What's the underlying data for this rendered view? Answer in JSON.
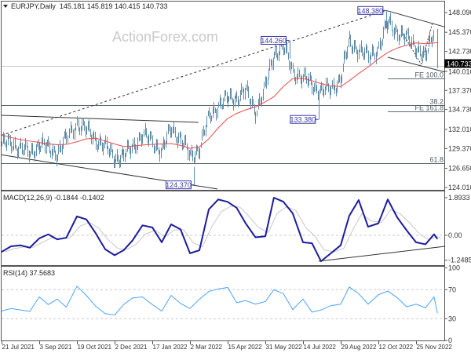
{
  "header": {
    "menu_icon": "triangle-down-icon",
    "symbol_label": "EURJPY,Daily",
    "ohlc": "145.181 145.819 140.415 140.733"
  },
  "watermark": "ActionForex.com",
  "macd_header": "MACD(12,26,9) -0.1844 -0.1402",
  "rsi_header": "RSI(14) 37.5683",
  "colors": {
    "bars": "#5f8ca8",
    "moving_average": "#f04a4a",
    "macd": "#1c1ca0",
    "signal": "#c8c8c8",
    "rsi": "#4aa3f5",
    "annotation": "#3a3aa8",
    "levels": "#5a6a70",
    "trendlines": "#333333"
  },
  "chart_data": [
    {
      "type": "ohlc",
      "symbol": "EURJPY",
      "timeframe": "Daily",
      "xticks": [
        {
          "label": "21 Jul 2021",
          "date": "2021-07-21"
        },
        {
          "label": "3 Sep 2021",
          "date": "2021-09-03"
        },
        {
          "label": "19 Oct 2021",
          "date": "2021-10-19"
        },
        {
          "label": "2 Dec 2021",
          "date": "2021-12-02"
        },
        {
          "label": "17 Jan 2022",
          "date": "2022-01-17"
        },
        {
          "label": "2 Mar 2022",
          "date": "2022-03-02"
        },
        {
          "label": "15 Apr 2022",
          "date": "2022-04-15"
        },
        {
          "label": "31 May 2022",
          "date": "2022-05-31"
        },
        {
          "label": "14 Jul 2022",
          "date": "2022-07-14"
        },
        {
          "label": "29 Aug 2022",
          "date": "2022-08-29"
        },
        {
          "label": "12 Oct 2022",
          "date": "2022-10-12"
        },
        {
          "label": "25 Nov 2022",
          "date": "2022-11-25"
        }
      ],
      "yticks": [
        "148.090",
        "145.370",
        "142.730",
        "140.010",
        "137.370",
        "134.730",
        "132.010",
        "129.370",
        "126.650",
        "124.010"
      ],
      "ylim": [
        124.01,
        148.09
      ],
      "x": [
        "2021-07-21",
        "2021-08-01",
        "2021-08-12",
        "2021-08-23",
        "2021-09-03",
        "2021-09-14",
        "2021-09-25",
        "2021-10-06",
        "2021-10-19",
        "2021-10-30",
        "2021-11-10",
        "2021-11-21",
        "2021-12-02",
        "2021-12-13",
        "2021-12-24",
        "2022-01-05",
        "2022-01-17",
        "2022-01-28",
        "2022-02-08",
        "2022-02-19",
        "2022-03-02",
        "2022-03-13",
        "2022-03-24",
        "2022-04-04",
        "2022-04-15",
        "2022-04-26",
        "2022-05-07",
        "2022-05-19",
        "2022-05-31",
        "2022-06-10",
        "2022-06-21",
        "2022-07-02",
        "2022-07-14",
        "2022-07-25",
        "2022-08-05",
        "2022-08-17",
        "2022-08-29",
        "2022-09-08",
        "2022-09-19",
        "2022-09-30",
        "2022-10-12",
        "2022-10-23",
        "2022-11-03",
        "2022-11-14",
        "2022-11-25",
        "2022-12-06",
        "2022-12-16",
        "2022-12-20"
      ],
      "close": [
        130.0,
        130.0,
        129.6,
        128.5,
        130.2,
        129.3,
        128.8,
        130.7,
        132.9,
        131.8,
        130.7,
        129.5,
        128.2,
        128.2,
        129.8,
        131.1,
        130.4,
        129.0,
        132.2,
        130.7,
        128.2,
        129.6,
        133.6,
        135.5,
        136.1,
        136.5,
        137.2,
        134.7,
        137.6,
        142.6,
        143.3,
        140.1,
        139.0,
        138.3,
        137.2,
        137.6,
        139.0,
        144.1,
        143.0,
        141.9,
        143.3,
        146.6,
        145.5,
        144.4,
        143.5,
        141.8,
        146.0,
        140.733
      ],
      "moving_average": [
        131.24,
        130.9,
        130.6,
        130.4,
        130.2,
        130.0,
        129.9,
        129.95,
        130.3,
        130.7,
        130.8,
        130.4,
        130.0,
        129.65,
        129.7,
        129.85,
        129.95,
        130.0,
        130.05,
        129.8,
        129.4,
        129.6,
        130.7,
        132.2,
        133.5,
        134.2,
        134.7,
        135.1,
        135.8,
        136.5,
        137.9,
        139.0,
        139.0,
        138.7,
        138.3,
        138.0,
        137.9,
        138.7,
        139.7,
        140.6,
        141.7,
        142.6,
        143.2,
        143.6,
        143.9,
        143.8,
        143.9,
        143.95
      ],
      "last_bar": {
        "date": "2022-12-20",
        "open": 145.181,
        "high": 145.819,
        "low": 140.415,
        "close": 140.733
      },
      "current_price": "140.733",
      "annotations": [
        {
          "label": "124.370",
          "date": "2022-03-07",
          "price": 124.37,
          "type": "low"
        },
        {
          "label": "144.260",
          "date": "2022-06-28",
          "price": 144.26,
          "type": "high"
        },
        {
          "label": "133.380",
          "date": "2022-08-02",
          "price": 133.38,
          "type": "low"
        },
        {
          "label": "148.380",
          "date": "2022-10-21",
          "price": 148.38,
          "type": "high"
        }
      ],
      "levels": [
        {
          "label": "FE 100.0",
          "value": 139.02,
          "from": "2022-10-23"
        },
        {
          "label": "38.2",
          "value": 135.4
        },
        {
          "label": "FE 161.8",
          "value": 134.48,
          "from": "2022-10-23"
        },
        {
          "label": "61.8",
          "value": 127.38
        }
      ],
      "trendlines": [
        {
          "from": [
            "2021-07-21",
            131.2
          ],
          "to": [
            "2022-10-21",
            148.38
          ],
          "style": "dashed"
        },
        {
          "from": [
            "2021-07-21",
            133.94
          ],
          "to": [
            "2022-03-12",
            132.97
          ],
          "style": "solid"
        },
        {
          "from": [
            "2021-07-21",
            128.5
          ],
          "to": [
            "2022-04-03",
            123.8
          ],
          "style": "solid"
        },
        {
          "from": [
            "2022-10-21",
            148.38
          ],
          "to": [
            "2022-12-29",
            146.1
          ],
          "style": "solid"
        },
        {
          "from": [
            "2022-10-23",
            141.93
          ],
          "to": [
            "2022-12-29",
            139.9
          ],
          "style": "solid"
        },
        {
          "from": [
            "2022-11-08",
            145.5
          ],
          "to": [
            "2022-12-01",
            140.96
          ],
          "style": "dotted"
        },
        {
          "from": [
            "2022-12-01",
            140.96
          ],
          "to": [
            "2022-12-14",
            146.6
          ],
          "style": "dotted"
        }
      ]
    },
    {
      "type": "line",
      "indicator": "MACD(12,26,9)",
      "yticks": [
        "1.8933",
        "0.00",
        "-1.2485"
      ],
      "ylim": [
        -1.2485,
        1.8933
      ],
      "macd": [
        -0.83,
        -0.55,
        -0.5,
        -0.62,
        -0.15,
        0.05,
        -0.2,
        -0.12,
        0.95,
        0.8,
        0.1,
        -0.7,
        -1.0,
        -0.75,
        -0.25,
        0.5,
        0.4,
        -0.35,
        0.55,
        0.3,
        -0.9,
        -0.75,
        1.3,
        1.8,
        1.68,
        1.38,
        0.6,
        -0.1,
        -0.05,
        1.89,
        1.69,
        1.1,
        -0.35,
        -0.4,
        -1.3,
        -0.9,
        -0.5,
        0.98,
        1.77,
        0.43,
        0.6,
        1.8,
        0.9,
        0.25,
        -0.35,
        -0.45,
        0.05,
        -0.1844
      ],
      "signal_last": -0.1402,
      "trendline": {
        "from": [
          "2022-08-02",
          -1.3
        ],
        "to": [
          "2022-12-29",
          -0.55
        ]
      }
    },
    {
      "type": "line",
      "indicator": "RSI(14)",
      "yticks": [
        "100",
        "70",
        "30",
        "0"
      ],
      "ylim": [
        0,
        100
      ],
      "levels": [
        70,
        30
      ],
      "rsi": [
        40.5,
        44,
        42,
        40,
        60,
        49.5,
        57,
        46,
        74.7,
        62,
        47,
        37,
        35,
        49.5,
        58.5,
        60,
        49.5,
        40.5,
        62,
        51,
        44,
        56.7,
        67.5,
        71,
        73,
        52,
        55,
        50,
        53.6,
        70,
        64.5,
        42.7,
        57,
        39,
        42,
        48,
        50,
        73.6,
        64.5,
        50,
        63,
        68,
        59,
        46.4,
        50,
        45,
        60,
        37.5683
      ]
    }
  ]
}
